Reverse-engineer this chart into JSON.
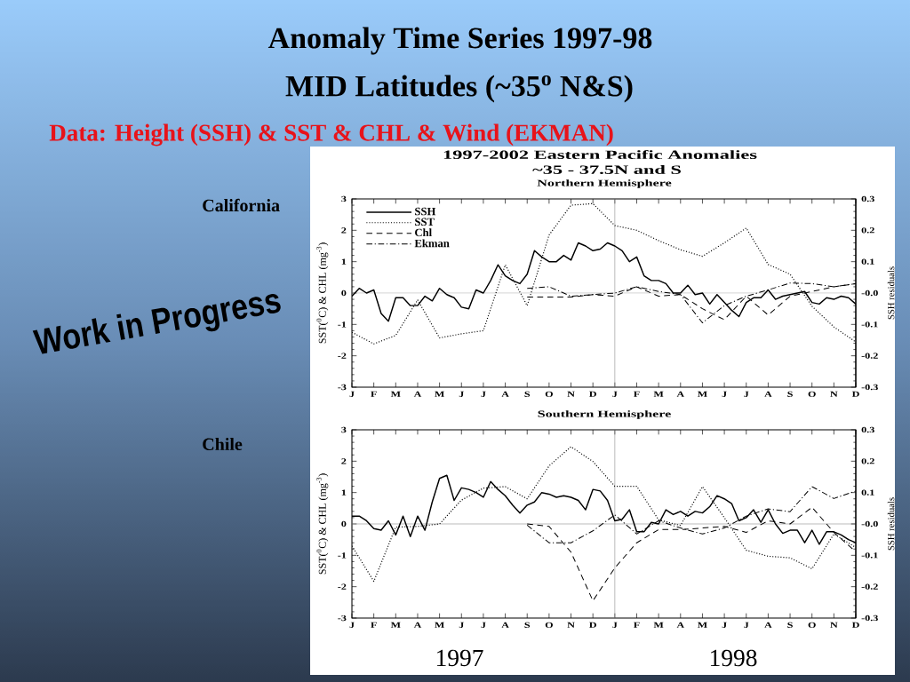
{
  "chart_data": [
    {
      "type": "line",
      "title": "Anomaly Time Series 1997-98",
      "subtitle": "MID Latitudes (~35$^{o}$ N&S)",
      "ylabel": "SST($^{0}$C) & CHL (mg$^{-3}$)",
      "y2label": "SSH residuals",
      "annotations": [
        "Data: Height (SSH) & SST & CHL & Wind (EKMAN)",
        "1997-2002 Eastern Pacific Anomalies",
        "~35 - 37.5N and S",
        "Northern Hemisphere",
        "California",
        "Work in Progress"
      ],
      "categories": [
        "J",
        null,
        null,
        "F",
        null,
        null,
        "M",
        null,
        null,
        "A",
        null,
        null,
        "M",
        null,
        null,
        "J",
        null,
        null,
        "J",
        null,
        null,
        "A",
        null,
        null,
        "S",
        null,
        null,
        "O",
        null,
        null,
        "N",
        null,
        null,
        "D",
        null,
        null,
        "J",
        null,
        null,
        "F",
        null,
        null,
        "M",
        null,
        null,
        "A",
        null,
        null,
        "M",
        null,
        null,
        "J",
        null,
        null,
        "J",
        null,
        null,
        "A",
        null,
        null,
        "S",
        null,
        null,
        "O",
        null,
        null,
        "N",
        null,
        null,
        "D"
      ],
      "ylim": [
        -3,
        3
      ],
      "yticks": [
        -3,
        -2,
        -1,
        0,
        1,
        2,
        3
      ],
      "y2lim": [
        -0.3,
        0.3
      ],
      "y2ticks": [
        -0.3,
        -0.2,
        -0.1,
        {
          "value": 0,
          "label": "-0.0"
        },
        0.1,
        0.2,
        0.3
      ],
      "ref_lines": [
        {
          "axis": "y",
          "value": 0,
          "color": "#999999"
        }
      ],
      "legend": "top left",
      "series": [
        {
          "name": "SSH",
          "color": "#000000",
          "line_style": "solid",
          "axis": "y2",
          "values": [
            -0.01,
            0.015,
            0.0,
            0.01,
            -0.065,
            -0.09,
            -0.015,
            -0.015,
            -0.04,
            -0.04,
            -0.01,
            -0.025,
            0.015,
            -0.005,
            -0.015,
            -0.045,
            -0.05,
            0.01,
            0.0,
            0.04,
            0.09,
            0.055,
            0.04,
            0.03,
            0.06,
            0.135,
            0.115,
            0.1,
            0.1,
            0.12,
            0.105,
            0.16,
            0.15,
            0.135,
            0.14,
            0.16,
            0.15,
            0.135,
            0.1,
            0.115,
            0.055,
            0.04,
            0.04,
            0.03,
            0.0,
            0.0,
            0.025,
            -0.005,
            0.0,
            -0.035,
            -0.005,
            -0.03,
            -0.055,
            -0.075,
            -0.03,
            -0.015,
            -0.015,
            0.01,
            -0.02,
            -0.01,
            -0.005,
            0.0,
            0.005,
            -0.03,
            -0.035,
            -0.015,
            -0.02,
            -0.01,
            -0.015,
            -0.035
          ]
        },
        {
          "name": "SST",
          "color": "#000000",
          "line_style": "dotted",
          "values": [
            -1.25,
            null,
            null,
            -1.62,
            null,
            null,
            -1.35,
            null,
            null,
            -0.22,
            null,
            null,
            -1.43,
            null,
            null,
            -1.3,
            null,
            null,
            -1.2,
            null,
            null,
            0.9,
            null,
            null,
            -0.4,
            null,
            null,
            1.85,
            null,
            null,
            2.8,
            null,
            null,
            2.85,
            null,
            null,
            2.15,
            null,
            null,
            2.0,
            null,
            null,
            1.67,
            null,
            null,
            1.38,
            null,
            null,
            1.17,
            null,
            null,
            1.6,
            null,
            null,
            2.07,
            null,
            null,
            0.91,
            null,
            null,
            0.6,
            null,
            null,
            -0.42,
            null,
            null,
            -1.08,
            null,
            null,
            -1.56
          ]
        },
        {
          "name": "Chl",
          "color": "#000000",
          "line_style": "dashed",
          "values": [
            null,
            null,
            null,
            null,
            null,
            null,
            null,
            null,
            null,
            null,
            null,
            null,
            null,
            null,
            null,
            null,
            null,
            null,
            null,
            null,
            null,
            null,
            null,
            null,
            -0.13,
            null,
            null,
            -0.13,
            null,
            null,
            -0.13,
            null,
            null,
            -0.05,
            null,
            null,
            -0.1,
            null,
            null,
            0.2,
            null,
            null,
            -0.1,
            null,
            null,
            -0.05,
            null,
            null,
            -0.5,
            null,
            null,
            -0.85,
            null,
            null,
            -0.1,
            null,
            null,
            -0.7,
            null,
            null,
            -0.1,
            null,
            null,
            0.05,
            null,
            null,
            0.2,
            null,
            null,
            0.3
          ]
        },
        {
          "name": "Ekman",
          "color": "#000000",
          "line_style": "dashdot",
          "values": [
            null,
            null,
            null,
            null,
            null,
            null,
            null,
            null,
            null,
            null,
            null,
            null,
            null,
            null,
            null,
            null,
            null,
            null,
            null,
            null,
            null,
            null,
            null,
            null,
            0.15,
            null,
            null,
            0.2,
            null,
            null,
            -0.1,
            null,
            null,
            -0.05,
            null,
            null,
            0.0,
            null,
            null,
            0.2,
            null,
            null,
            0.05,
            null,
            null,
            -0.05,
            null,
            null,
            -0.95,
            null,
            null,
            -0.4,
            null,
            null,
            -0.1,
            null,
            null,
            0.1,
            null,
            null,
            0.32,
            null,
            null,
            0.3,
            null,
            null,
            0.2,
            null,
            null,
            0.3
          ]
        }
      ]
    },
    {
      "type": "line",
      "title": "Southern Hemisphere",
      "ylabel": "SST($^{0}$C) & CHL (mg$^{-3}$)",
      "y2label": "SSH residuals",
      "annotations": [
        "Chile",
        "1997",
        "1998"
      ],
      "categories": [
        "J",
        null,
        null,
        "F",
        null,
        null,
        "M",
        null,
        null,
        "A",
        null,
        null,
        "M",
        null,
        null,
        "J",
        null,
        null,
        "J",
        null,
        null,
        "A",
        null,
        null,
        "S",
        null,
        null,
        "O",
        null,
        null,
        "N",
        null,
        null,
        "D",
        null,
        null,
        "J",
        null,
        null,
        "F",
        null,
        null,
        "M",
        null,
        null,
        "A",
        null,
        null,
        "M",
        null,
        null,
        "J",
        null,
        null,
        "J",
        null,
        null,
        "A",
        null,
        null,
        "S",
        null,
        null,
        "O",
        null,
        null,
        "N",
        null,
        null,
        "D"
      ],
      "ylim": [
        -3,
        3
      ],
      "yticks": [
        -3,
        -2,
        -1,
        0,
        1,
        2,
        3
      ],
      "y2lim": [
        -0.3,
        0.3
      ],
      "y2ticks": [
        -0.3,
        -0.2,
        -0.1,
        {
          "value": 0,
          "label": "-0.0"
        },
        0.1,
        0.2,
        0.3
      ],
      "ref_lines": [
        {
          "axis": "y",
          "value": 0,
          "color": "#999999"
        }
      ],
      "series": [
        {
          "color": "#000000",
          "line_style": "solid",
          "axis": "y2",
          "values": [
            0.025,
            0.025,
            0.01,
            -0.015,
            -0.02,
            0.01,
            -0.035,
            0.025,
            -0.04,
            0.025,
            -0.02,
            0.07,
            0.145,
            0.155,
            0.075,
            0.115,
            0.11,
            0.1,
            0.085,
            0.135,
            0.11,
            0.09,
            0.06,
            0.035,
            0.06,
            0.07,
            0.1,
            0.095,
            0.085,
            0.09,
            0.085,
            0.075,
            0.045,
            0.11,
            0.105,
            0.075,
            0.01,
            0.015,
            0.045,
            -0.025,
            -0.025,
            0.005,
            0.0,
            0.045,
            0.03,
            0.04,
            0.025,
            0.04,
            0.035,
            0.055,
            0.09,
            0.08,
            0.065,
            0.01,
            0.02,
            0.045,
            0.005,
            0.045,
            0.0,
            -0.03,
            -0.02,
            -0.02,
            -0.06,
            -0.02,
            -0.065,
            -0.025,
            -0.025,
            -0.035,
            -0.05,
            -0.06
          ]
        },
        {
          "color": "#000000",
          "line_style": "dotted",
          "values": [
            -0.7,
            null,
            null,
            -1.83,
            null,
            null,
            -0.1,
            null,
            null,
            -0.08,
            null,
            null,
            0.0,
            null,
            null,
            0.76,
            null,
            null,
            1.14,
            null,
            null,
            1.19,
            null,
            null,
            0.8,
            null,
            null,
            1.85,
            null,
            null,
            2.46,
            null,
            null,
            1.99,
            null,
            null,
            1.2,
            null,
            null,
            1.2,
            null,
            null,
            0.13,
            null,
            null,
            -0.05,
            null,
            null,
            1.19,
            null,
            null,
            0.2,
            null,
            null,
            -0.84,
            null,
            null,
            -1.03,
            null,
            null,
            -1.08,
            null,
            null,
            -1.43,
            null,
            null,
            -0.32,
            null,
            null,
            -0.75
          ]
        },
        {
          "color": "#000000",
          "line_style": "dashed",
          "values": [
            null,
            null,
            null,
            null,
            null,
            null,
            null,
            null,
            null,
            null,
            null,
            null,
            null,
            null,
            null,
            null,
            null,
            null,
            null,
            null,
            null,
            null,
            null,
            null,
            0.0,
            null,
            null,
            -0.08,
            null,
            null,
            -0.9,
            null,
            null,
            -2.45,
            null,
            null,
            -1.4,
            null,
            null,
            -0.6,
            null,
            null,
            -0.18,
            null,
            null,
            -0.18,
            null,
            null,
            -0.13,
            null,
            null,
            -0.08,
            null,
            null,
            -0.27,
            null,
            null,
            0.1,
            null,
            null,
            0.0,
            null,
            null,
            0.53,
            null,
            null,
            -0.27,
            null,
            null,
            -0.89
          ]
        },
        {
          "color": "#000000",
          "line_style": "dashdot",
          "values": [
            null,
            null,
            null,
            null,
            null,
            null,
            null,
            null,
            null,
            null,
            null,
            null,
            null,
            null,
            null,
            null,
            null,
            null,
            null,
            null,
            null,
            null,
            null,
            null,
            -0.04,
            null,
            null,
            -0.6,
            null,
            null,
            -0.6,
            null,
            null,
            -0.22,
            null,
            null,
            0.29,
            null,
            null,
            -0.32,
            null,
            null,
            0.1,
            null,
            null,
            -0.13,
            null,
            null,
            -0.32,
            null,
            null,
            -0.13,
            null,
            null,
            0.25,
            null,
            null,
            0.48,
            null,
            null,
            0.39,
            null,
            null,
            1.19,
            null,
            null,
            0.81,
            null,
            null,
            1.05
          ]
        }
      ]
    }
  ]
}
